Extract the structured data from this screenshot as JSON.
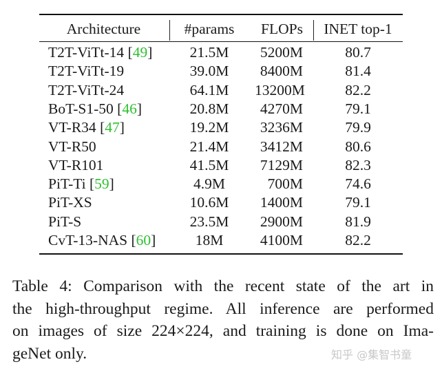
{
  "table": {
    "headers": {
      "architecture": "Architecture",
      "params": "#params",
      "flops": "FLOPs",
      "top1": "INET top-1"
    },
    "rows": [
      {
        "arch": "T2T-ViTt-14",
        "cite": "49",
        "params": "21.5M",
        "flops": "5200M",
        "top1": "80.7"
      },
      {
        "arch": "T2T-ViTt-19",
        "cite": "",
        "params": "39.0M",
        "flops": "8400M",
        "top1": "81.4"
      },
      {
        "arch": "T2T-ViTt-24",
        "cite": "",
        "params": "64.1M",
        "flops": "13200M",
        "top1": "82.2"
      },
      {
        "arch": "BoT-S1-50",
        "cite": "46",
        "params": "20.8M",
        "flops": "4270M",
        "top1": "79.1"
      },
      {
        "arch": "VT-R34",
        "cite": "47",
        "params": "19.2M",
        "flops": "3236M",
        "top1": "79.9"
      },
      {
        "arch": "VT-R50",
        "cite": "",
        "params": "21.4M",
        "flops": "3412M",
        "top1": "80.6"
      },
      {
        "arch": "VT-R101",
        "cite": "",
        "params": "41.5M",
        "flops": "7129M",
        "top1": "82.3"
      },
      {
        "arch": "PiT-Ti",
        "cite": "59",
        "params": "4.9M",
        "flops": "700M",
        "top1": "74.6"
      },
      {
        "arch": "PiT-XS",
        "cite": "",
        "params": "10.6M",
        "flops": "1400M",
        "top1": "79.1"
      },
      {
        "arch": "PiT-S",
        "cite": "",
        "params": "23.5M",
        "flops": "2900M",
        "top1": "81.9"
      },
      {
        "arch": "CvT-13-NAS",
        "cite": "60",
        "params": "18M",
        "flops": "4100M",
        "top1": "82.2"
      }
    ]
  },
  "caption": {
    "lines": [
      "Table 4:   Comparison with the recent state of the art in",
      "the high-throughput regime. All inference are performed",
      "on images of size 224×224, and training is done on Ima-",
      "geNet only."
    ]
  },
  "watermark": "知乎 @集智书童",
  "colors": {
    "citation": "#2fbf2f",
    "text": "#1a1a1a"
  }
}
